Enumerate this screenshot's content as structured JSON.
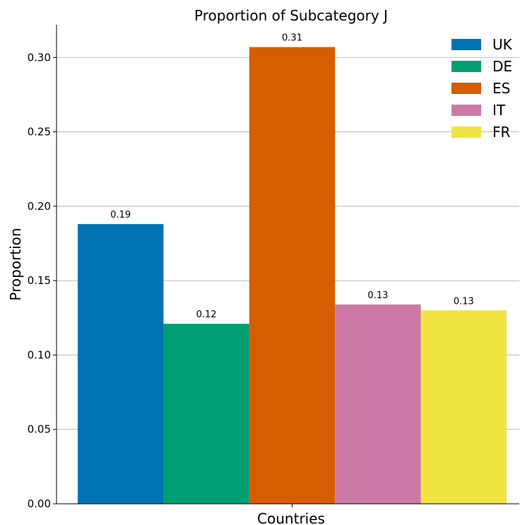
{
  "chart_data": {
    "type": "bar",
    "title": "Proportion of Subcategory J",
    "xlabel": "Countries",
    "ylabel": "Proportion",
    "ylim": [
      0,
      0.322
    ],
    "yticks": [
      "0.00",
      "0.05",
      "0.10",
      "0.15",
      "0.20",
      "0.25",
      "0.30"
    ],
    "grid": "horizontal",
    "legend_position": "top-right",
    "series": [
      {
        "name": "UK",
        "value": 0.188,
        "label": "0.19",
        "color": "#0072b2"
      },
      {
        "name": "DE",
        "value": 0.121,
        "label": "0.12",
        "color": "#009e73"
      },
      {
        "name": "ES",
        "value": 0.307,
        "label": "0.31",
        "color": "#d55e00"
      },
      {
        "name": "IT",
        "value": 0.134,
        "label": "0.13",
        "color": "#cc79a7"
      },
      {
        "name": "FR",
        "value": 0.13,
        "label": "0.13",
        "color": "#f0e442"
      }
    ]
  }
}
